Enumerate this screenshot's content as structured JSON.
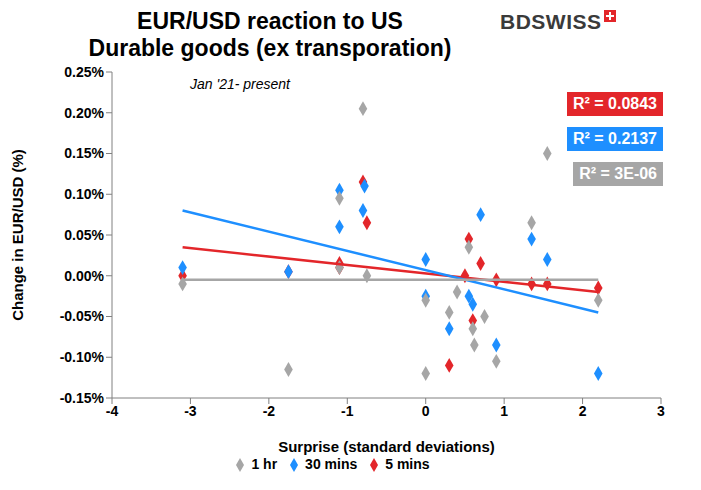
{
  "chart_data": {
    "type": "scatter",
    "title": [
      "EUR/USD reaction to US",
      "Durable goods (ex transporation)"
    ],
    "brand": "BDSWISS",
    "subtitle": "Jan '21- present",
    "x_label": "Surprise (standard deviations)",
    "y_label": "Change in EUR/USD (%)",
    "xlim": [
      -4,
      3
    ],
    "xticks": [
      -4,
      -3,
      -2,
      -1,
      0,
      1,
      2,
      3
    ],
    "ylim": [
      -0.15,
      0.25
    ],
    "yticks": [
      {
        "value": -0.15,
        "label": "-0.15%"
      },
      {
        "value": -0.1,
        "label": "-0.10%"
      },
      {
        "value": -0.05,
        "label": "-0.05%"
      },
      {
        "value": 0,
        "label": "0.00%"
      },
      {
        "value": 0.05,
        "label": "0.05%"
      },
      {
        "value": 0.1,
        "label": "0.10%"
      },
      {
        "value": 0.15,
        "label": "0.15%"
      },
      {
        "value": 0.2,
        "label": "0.20%"
      },
      {
        "value": 0.25,
        "label": "0.25%"
      }
    ],
    "grid": false,
    "legend": "bottom",
    "series": [
      {
        "name": "5 mins",
        "color": "#e3262a",
        "marker": "diamond",
        "x": [
          -3.1,
          -1.75,
          -1.1,
          -1.1,
          -0.8,
          -0.75,
          0.3,
          0.5,
          0.55,
          0.6,
          0.7,
          0.9,
          1.35,
          1.55,
          2.2
        ],
        "values": [
          0.0,
          0.005,
          0.01,
          0.015,
          0.115,
          0.065,
          -0.11,
          0.0,
          0.045,
          -0.055,
          0.015,
          -0.005,
          -0.01,
          -0.01,
          -0.015
        ],
        "trend": {
          "x": [
            -3.1,
            2.2
          ],
          "values": [
            0.035,
            -0.02
          ]
        },
        "annotation": "R² = 0.0843"
      },
      {
        "name": "30 mins",
        "color": "#1e8fff",
        "marker": "diamond",
        "x": [
          -3.1,
          -1.75,
          -1.1,
          -1.1,
          -0.8,
          -0.78,
          0.0,
          0.0,
          0.3,
          0.55,
          0.6,
          0.7,
          0.9,
          1.35,
          1.55,
          2.2
        ],
        "values": [
          0.01,
          0.005,
          0.105,
          0.06,
          0.08,
          0.11,
          0.02,
          -0.025,
          -0.065,
          -0.025,
          -0.035,
          0.075,
          -0.085,
          0.045,
          0.02,
          -0.12
        ],
        "trend": {
          "x": [
            -3.1,
            2.2
          ],
          "values": [
            0.08,
            -0.045
          ]
        },
        "annotation": "R² = 0.2137"
      },
      {
        "name": "1 hr",
        "color": "#a6a6a6",
        "marker": "diamond",
        "x": [
          -3.1,
          -1.75,
          -1.1,
          -1.1,
          -0.8,
          -0.75,
          0.0,
          0.0,
          0.3,
          0.4,
          0.55,
          0.6,
          0.62,
          0.75,
          0.9,
          1.35,
          1.55,
          2.2
        ],
        "values": [
          -0.01,
          -0.115,
          0.095,
          0.01,
          0.205,
          0.0,
          -0.03,
          -0.12,
          -0.045,
          -0.02,
          0.035,
          -0.065,
          -0.085,
          -0.05,
          -0.105,
          0.065,
          0.15,
          -0.03
        ],
        "trend": {
          "x": [
            -3.1,
            2.2
          ],
          "values": [
            -0.005,
            -0.005
          ]
        },
        "annotation": "R² = 3E-06"
      }
    ]
  }
}
